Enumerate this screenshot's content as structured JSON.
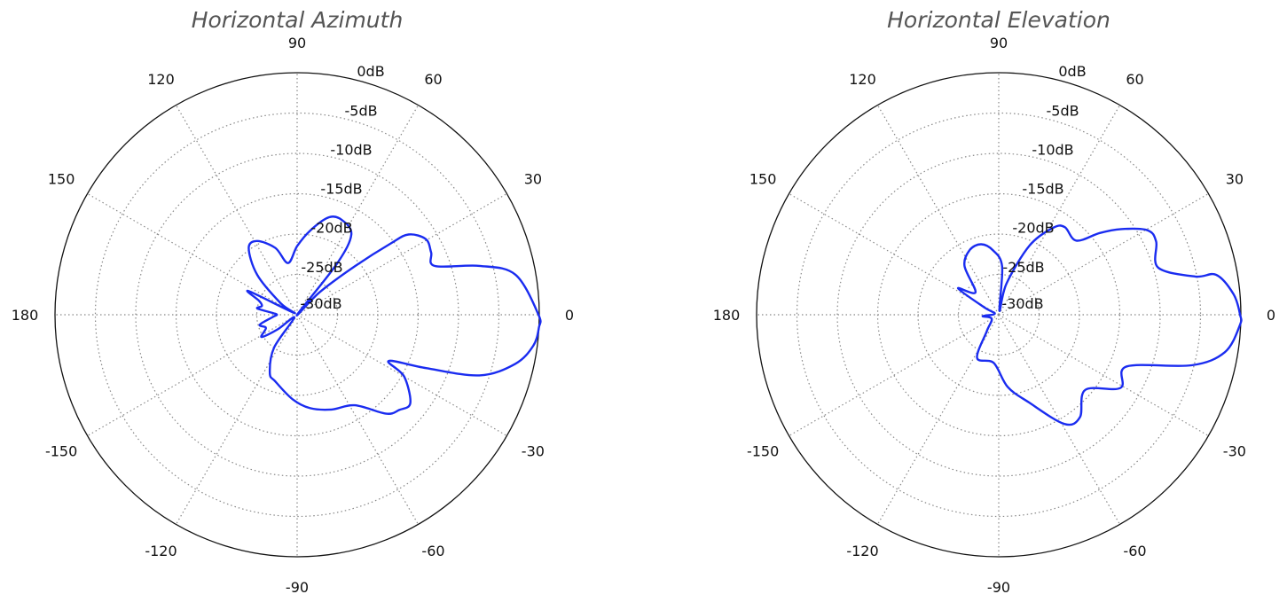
{
  "chart_data": [
    {
      "type": "polar-line",
      "title": "Horizontal Azimuth",
      "angle_ticks": [
        0,
        30,
        60,
        90,
        120,
        150,
        180,
        -150,
        -120,
        -90,
        -60,
        -30
      ],
      "radial_ticks": [
        "0dB",
        "-5dB",
        "-10dB",
        "-15dB",
        "-20dB",
        "-25dB",
        "-30dB"
      ],
      "rlim_db": [
        -30,
        0
      ],
      "grid": true,
      "line_color": "#1a2cf0",
      "series": [
        {
          "points_deg_db": [
            [
              0,
              -0.1
            ],
            [
              10.4,
              -2.5
            ],
            [
              15,
              -6.6
            ],
            [
              19.5,
              -11.9
            ],
            [
              24.9,
              -11.7
            ],
            [
              30.4,
              -11.5
            ],
            [
              35.8,
              -13
            ],
            [
              37.3,
              -15.4
            ],
            [
              40,
              -20.6
            ],
            [
              45,
              -26
            ],
            [
              48,
              -30
            ],
            [
              52,
              -22
            ],
            [
              56,
              -18
            ],
            [
              65,
              -17
            ],
            [
              72,
              -17.3
            ],
            [
              81,
              -19.4
            ],
            [
              90,
              -21.5
            ],
            [
              100,
              -23.5
            ],
            [
              108,
              -21.3
            ],
            [
              118.5,
              -19.6
            ],
            [
              126,
              -19.8
            ],
            [
              135,
              -23
            ],
            [
              145,
              -27.5
            ],
            [
              150,
              -29.5
            ],
            [
              154,
              -23.3
            ],
            [
              160,
              -25
            ],
            [
              166,
              -25.5
            ],
            [
              171,
              -25
            ],
            [
              176,
              -27
            ],
            [
              180,
              -27.5
            ],
            [
              -175,
              -27
            ],
            [
              -165,
              -25.2
            ],
            [
              -157,
              -25.8
            ],
            [
              -148,
              -24.8
            ],
            [
              -143,
              -27
            ],
            [
              -135,
              -29.5
            ],
            [
              -125,
              -25
            ],
            [
              -115,
              -22
            ],
            [
              -108,
              -21.3
            ],
            [
              -93,
              -19.5
            ],
            [
              -82,
              -18.3
            ],
            [
              -70,
              -17.5
            ],
            [
              -57.5,
              -16.7
            ],
            [
              -48,
              -13.5
            ],
            [
              -43,
              -12.7
            ],
            [
              -38,
              -12.2
            ],
            [
              -30,
              -14.7
            ],
            [
              -26.8,
              -17.3
            ],
            [
              -22.5,
              -12.7
            ],
            [
              -18.4,
              -6.2
            ],
            [
              -12.7,
              -2.3
            ],
            [
              -7.5,
              -0.5
            ],
            [
              -3,
              0
            ]
          ]
        }
      ]
    },
    {
      "type": "polar-line",
      "title": "Horizontal Elevation",
      "angle_ticks": [
        0,
        30,
        60,
        90,
        120,
        150,
        180,
        -150,
        -120,
        -90,
        -60,
        -30
      ],
      "radial_ticks": [
        "0dB",
        "-5dB",
        "-10dB",
        "-15dB",
        "-20dB",
        "-25dB",
        "-30dB"
      ],
      "rlim_db": [
        -30,
        0
      ],
      "grid": true,
      "line_color": "#1a2cf0",
      "series": [
        {
          "points_deg_db": [
            [
              0,
              -0.1
            ],
            [
              5,
              -0.8
            ],
            [
              10.4,
              -2.6
            ],
            [
              11,
              -5.2
            ],
            [
              16.5,
              -9.4
            ],
            [
              24.9,
              -8.5
            ],
            [
              29.6,
              -8.8
            ],
            [
              35,
              -11.5
            ],
            [
              39,
              -13.9
            ],
            [
              43.7,
              -16.7
            ],
            [
              53,
              -16.4
            ],
            [
              58,
              -17.3
            ],
            [
              66,
              -20.6
            ],
            [
              76,
              -26
            ],
            [
              80,
              -29.5
            ],
            [
              86,
              -24
            ],
            [
              95,
              -22
            ],
            [
              104,
              -21
            ],
            [
              114,
              -21.2
            ],
            [
              125,
              -22.6
            ],
            [
              136,
              -26
            ],
            [
              147,
              -24
            ],
            [
              153,
              -28
            ],
            [
              165,
              -29.5
            ],
            [
              -175,
              -28
            ],
            [
              -150,
              -29
            ],
            [
              -126,
              -27.5
            ],
            [
              -116.6,
              -24
            ],
            [
              -96,
              -24
            ],
            [
              -83,
              -21
            ],
            [
              -71,
              -18.5
            ],
            [
              -59,
              -14.2
            ],
            [
              -51.6,
              -13.8
            ],
            [
              -41,
              -15.8
            ],
            [
              -31,
              -12.4
            ],
            [
              -22,
              -12.9
            ],
            [
              -14.7,
              -5.3
            ],
            [
              -9.4,
              -1.6
            ],
            [
              -2.5,
              -0.1
            ]
          ]
        }
      ]
    }
  ]
}
